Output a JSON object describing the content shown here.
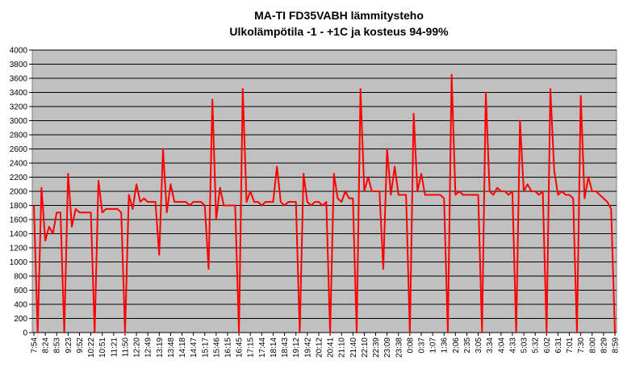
{
  "chart_data": {
    "type": "line",
    "title": "MA-TI FD35VABH lämmitysteho",
    "subtitle": "Ulkolämpötila  -1 - +1C ja kosteus 94-99%",
    "categories": [
      "7:54",
      null,
      null,
      "8:24",
      null,
      null,
      "8:53",
      null,
      null,
      "9:23",
      null,
      null,
      "9:52",
      null,
      null,
      "10:22",
      null,
      null,
      "10:51",
      null,
      null,
      "11:21",
      null,
      null,
      "11:50",
      null,
      null,
      "12:20",
      null,
      null,
      "12:49",
      null,
      null,
      "13:19",
      null,
      null,
      "13:48",
      null,
      null,
      "14:18",
      null,
      null,
      "14:47",
      null,
      null,
      "15:17",
      null,
      null,
      "15:46",
      null,
      null,
      "16:15",
      null,
      null,
      "16:45",
      null,
      null,
      "17:15",
      null,
      null,
      "17:44",
      null,
      null,
      "18:14",
      null,
      null,
      "18:43",
      null,
      null,
      "19:12",
      null,
      null,
      "19:42",
      null,
      null,
      "20:12",
      null,
      null,
      "20:41",
      null,
      null,
      "21:10",
      null,
      null,
      "21:40",
      null,
      null,
      "22:10",
      null,
      null,
      "22:39",
      null,
      null,
      "23:09",
      null,
      null,
      "23:38",
      null,
      null,
      "0:08",
      null,
      null,
      "0:37",
      null,
      null,
      "1:07",
      null,
      null,
      "1:36",
      null,
      null,
      "2:06",
      null,
      null,
      "2:35",
      null,
      null,
      "3:05",
      null,
      null,
      "3:34",
      null,
      null,
      "4:04",
      null,
      null,
      "4:33",
      null,
      null,
      "5:03",
      null,
      null,
      "5:32",
      null,
      null,
      "6:02",
      null,
      null,
      "6:31",
      null,
      null,
      "7:01",
      null,
      null,
      "7:30",
      null,
      null,
      "8:00",
      null,
      null,
      "8:29",
      null,
      null,
      "8:59"
    ],
    "series": [
      {
        "color": "#ff0000",
        "values": [
          1800,
          0,
          2050,
          1300,
          1500,
          1400,
          1700,
          1700,
          0,
          2250,
          1500,
          1750,
          1700,
          1700,
          1700,
          1700,
          0,
          2150,
          1700,
          1750,
          1750,
          1750,
          1750,
          1700,
          0,
          1950,
          1750,
          2100,
          1850,
          1900,
          1850,
          1850,
          1850,
          1100,
          2600,
          1700,
          2100,
          1850,
          1850,
          1850,
          1850,
          1800,
          1850,
          1850,
          1850,
          1800,
          900,
          3300,
          1600,
          2050,
          1800,
          1800,
          1800,
          1800,
          0,
          3450,
          1850,
          2000,
          1850,
          1850,
          1800,
          1850,
          1850,
          1850,
          2350,
          1850,
          1800,
          1850,
          1850,
          1850,
          0,
          2250,
          1850,
          1800,
          1850,
          1850,
          1800,
          1850,
          0,
          2250,
          1900,
          1850,
          2000,
          1900,
          1900,
          0,
          3450,
          2000,
          2200,
          2000,
          2000,
          2000,
          900,
          2600,
          1950,
          2350,
          1950,
          1950,
          1950,
          0,
          3100,
          2000,
          2250,
          1950,
          1950,
          1950,
          1950,
          1950,
          1900,
          0,
          3650,
          1950,
          2000,
          1950,
          1950,
          1950,
          1950,
          1950,
          0,
          3400,
          2000,
          1950,
          2050,
          2000,
          2000,
          1950,
          2000,
          0,
          3000,
          2000,
          2100,
          2000,
          2000,
          1950,
          2000,
          0,
          3450,
          2300,
          1950,
          2000,
          1950,
          1950,
          1900,
          0,
          3350,
          1900,
          2200,
          2000,
          2000,
          1950,
          1900,
          1850,
          1750,
          0
        ]
      }
    ],
    "ylim": [
      0,
      4000
    ],
    "yticks": [
      0,
      200,
      400,
      600,
      800,
      1000,
      1200,
      1400,
      1600,
      1800,
      2000,
      2200,
      2400,
      2600,
      2800,
      3000,
      3200,
      3400,
      3600,
      3800,
      4000
    ],
    "grid": true,
    "background": "#c0c0c0"
  }
}
